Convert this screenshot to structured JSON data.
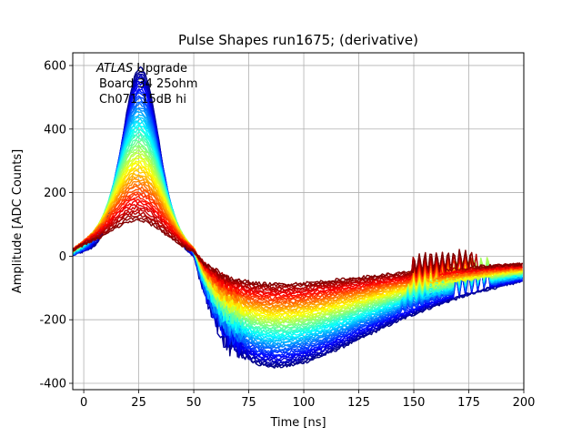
{
  "chart_data": {
    "type": "line",
    "title": "Pulse Shapes run1675; (derivative)",
    "xlabel": "Time [ns]",
    "ylabel": "Amplitude [ADC Counts]",
    "xlim": [
      -5,
      200
    ],
    "ylim": [
      -420,
      640
    ],
    "xticks": [
      0,
      25,
      50,
      75,
      100,
      125,
      150,
      175,
      200
    ],
    "yticks": [
      -400,
      -200,
      0,
      200,
      400,
      600
    ],
    "grid": true,
    "colormap": "jet",
    "annotation": {
      "line1_italic": "ATLAS",
      "line1_rest": " Upgrade",
      "line2": "Board 34 25ohm",
      "line3": "Ch071 15dB hi"
    },
    "series_count": 60,
    "peak_range": [
      120,
      600
    ],
    "peak_time": 25,
    "undershoot_range": [
      -80,
      -340
    ],
    "undershoot_time": 88,
    "zero_crossing": 53
  }
}
